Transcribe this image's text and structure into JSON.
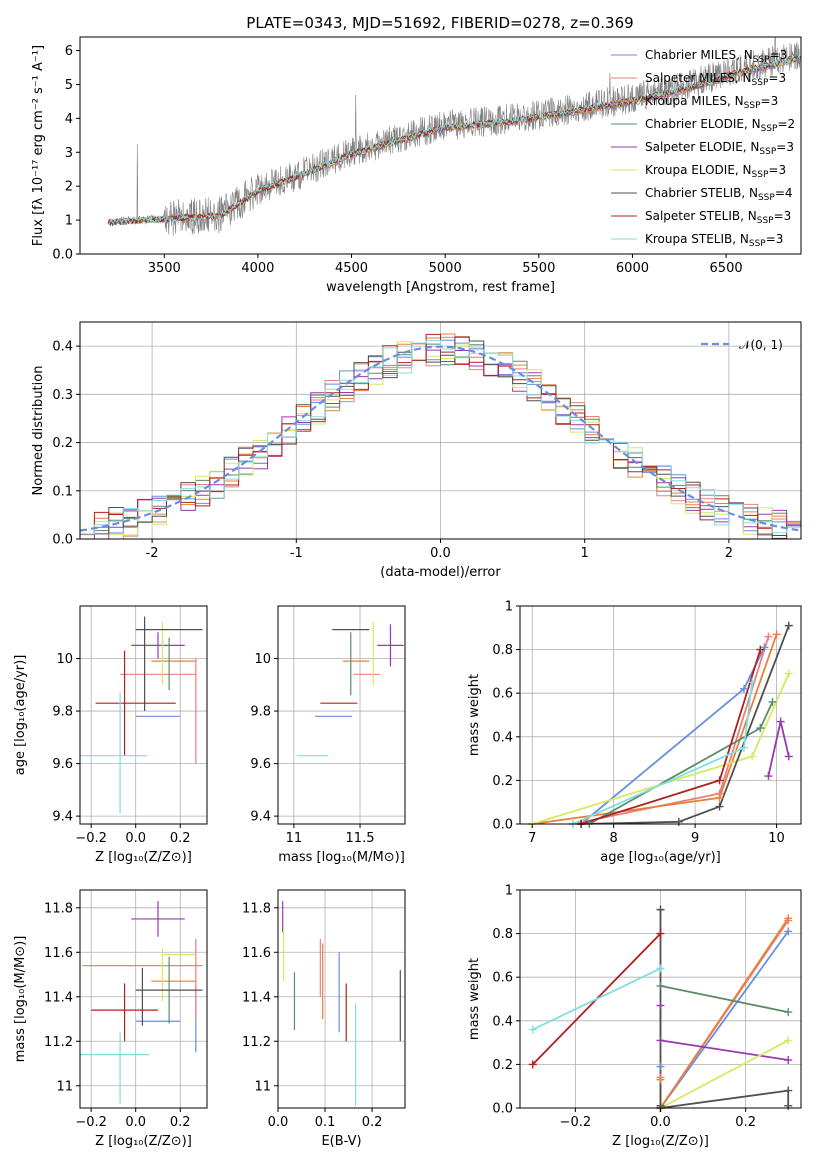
{
  "figure": {
    "title": "PLATE=0343, MJD=51692, FIBERID=0278, z=0.369"
  },
  "models": [
    {
      "name": "Chabrier MILES",
      "nssp": "3",
      "color": "#6a8de0"
    },
    {
      "name": "Salpeter MILES",
      "nssp": "3",
      "color": "#e8807e"
    },
    {
      "name": "Kroupa MILES",
      "nssp": "3",
      "color": "#e8803a"
    },
    {
      "name": "Chabrier ELODIE",
      "nssp": "2",
      "color": "#5a8c6a"
    },
    {
      "name": "Salpeter ELODIE",
      "nssp": "3",
      "color": "#9a38b0"
    },
    {
      "name": "Kroupa ELODIE",
      "nssp": "3",
      "color": "#d8e860"
    },
    {
      "name": "Chabrier STELIB",
      "nssp": "4",
      "color": "#505050"
    },
    {
      "name": "Salpeter STELIB",
      "nssp": "3",
      "color": "#b02020"
    },
    {
      "name": "Kroupa STELIB",
      "nssp": "3",
      "color": "#80dede"
    }
  ],
  "chart_data": [
    {
      "type": "line",
      "id": "spectrum",
      "title": "PLATE=0343, MJD=51692, FIBERID=0278, z=0.369",
      "xlabel": "wavelength [Angstrom, rest frame]",
      "ylabel": "Flux [fλ 10⁻¹⁷ erg cm⁻² s⁻¹ A⁻¹]",
      "xlim": [
        3050,
        6900
      ],
      "ylim": [
        0,
        6.4
      ],
      "xticks": [
        3500,
        4000,
        4500,
        5000,
        5500,
        6000,
        6500
      ],
      "yticks": [
        0,
        1,
        2,
        3,
        4,
        5,
        6
      ],
      "legend_position": "top-right",
      "data_color": "#7f7f7f",
      "continuum": [
        [
          3200,
          0.95
        ],
        [
          3500,
          1.05
        ],
        [
          3800,
          1.15
        ],
        [
          4000,
          1.9
        ],
        [
          4200,
          2.3
        ],
        [
          4500,
          3.0
        ],
        [
          4800,
          3.5
        ],
        [
          5000,
          3.8
        ],
        [
          5300,
          3.95
        ],
        [
          5600,
          4.2
        ],
        [
          6000,
          4.6
        ],
        [
          6300,
          5.0
        ],
        [
          6600,
          5.5
        ],
        [
          6900,
          5.9
        ]
      ],
      "model_start": [
        3200,
        3200,
        3530,
        3200,
        3200,
        3200,
        3200,
        3200,
        3200
      ]
    },
    {
      "type": "step",
      "id": "residuals",
      "xlabel": "(data-model)/error",
      "ylabel": "Normed distribution",
      "xlim": [
        -2.5,
        2.5
      ],
      "ylim": [
        0,
        0.45
      ],
      "xticks": [
        -2,
        -1,
        0,
        1,
        2
      ],
      "yticks": [
        0.0,
        0.1,
        0.2,
        0.3,
        0.4
      ],
      "grid": true,
      "legend": "𝒩(0, 1)",
      "legend_position": "top-right",
      "bin_width": 0.1,
      "gaussian": {
        "mean": 0,
        "sigma": 1,
        "color": "#6a8de0"
      }
    },
    {
      "type": "errorbar",
      "id": "age-vs-Z",
      "xlabel": "Z [log₁₀(Z/Z⊙)]",
      "ylabel": "age  [log₁₀(age/yr)]",
      "xlim": [
        -0.25,
        0.32
      ],
      "ylim": [
        9.37,
        10.2
      ],
      "xticks": [
        -0.2,
        0.0,
        0.2
      ],
      "yticks": [
        9.4,
        9.6,
        9.8,
        10.0
      ],
      "grid": true,
      "points": [
        {
          "x": 0.1,
          "y": 9.78,
          "xerr": 0.1,
          "yerr": 0.0,
          "c": 0
        },
        {
          "x": 0.1,
          "y": 9.94,
          "xerr": 0.17,
          "yerr": 0.0,
          "c": 1
        },
        {
          "x": 0.27,
          "y": 9.8,
          "xerr": 0.0,
          "yerr": 0.2,
          "c": 1
        },
        {
          "x": 0.17,
          "y": 9.99,
          "xerr": 0.1,
          "yerr": 0.0,
          "c": 2
        },
        {
          "x": 0.15,
          "y": 9.98,
          "xerr": 0.0,
          "yerr": 0.1,
          "c": 3
        },
        {
          "x": 0.1,
          "y": 10.05,
          "xerr": 0.12,
          "yerr": 0.05,
          "c": 4
        },
        {
          "x": 0.12,
          "y": 10.02,
          "xerr": 0.0,
          "yerr": 0.12,
          "c": 5
        },
        {
          "x": 0.15,
          "y": 10.11,
          "xerr": 0.15,
          "yerr": 0.0,
          "c": 6
        },
        {
          "x": 0.04,
          "y": 9.98,
          "xerr": 0.0,
          "yerr": 0.18,
          "c": 6
        },
        {
          "x": 0.0,
          "y": 9.83,
          "xerr": 0.18,
          "yerr": 0.0,
          "c": 7
        },
        {
          "x": -0.05,
          "y": 9.83,
          "xerr": 0.0,
          "yerr": 0.2,
          "c": 7
        },
        {
          "x": -0.1,
          "y": 9.63,
          "xerr": 0.15,
          "yerr": 0.0,
          "c": 8
        },
        {
          "x": -0.07,
          "y": 9.64,
          "xerr": 0.0,
          "yerr": 0.23,
          "c": 8
        }
      ]
    },
    {
      "type": "errorbar",
      "id": "age-vs-mass",
      "xlabel": "mass [log₁₀(M/M⊙)]",
      "ylabel": "",
      "xlim": [
        10.88,
        11.84
      ],
      "ylim": [
        9.37,
        10.2
      ],
      "xticks": [
        11.0,
        11.5
      ],
      "yticks": [
        9.4,
        9.6,
        9.8,
        10.0
      ],
      "grid": true,
      "points": [
        {
          "x": 11.3,
          "y": 9.78,
          "xerr": 0.14,
          "yerr": 0.0,
          "c": 0
        },
        {
          "x": 11.55,
          "y": 9.94,
          "xerr": 0.1,
          "yerr": 0.0,
          "c": 1
        },
        {
          "x": 11.47,
          "y": 9.99,
          "xerr": 0.1,
          "yerr": 0.0,
          "c": 2
        },
        {
          "x": 11.43,
          "y": 9.98,
          "xerr": 0.0,
          "yerr": 0.12,
          "c": 3
        },
        {
          "x": 11.73,
          "y": 10.05,
          "xerr": 0.1,
          "yerr": 0.08,
          "c": 4
        },
        {
          "x": 11.6,
          "y": 10.02,
          "xerr": 0.0,
          "yerr": 0.12,
          "c": 5
        },
        {
          "x": 11.43,
          "y": 10.11,
          "xerr": 0.14,
          "yerr": 0.0,
          "c": 6
        },
        {
          "x": 11.34,
          "y": 9.83,
          "xerr": 0.14,
          "yerr": 0.0,
          "c": 7
        },
        {
          "x": 11.14,
          "y": 9.63,
          "xerr": 0.12,
          "yerr": 0.0,
          "c": 8
        }
      ]
    },
    {
      "type": "line",
      "id": "weight-vs-age",
      "xlabel": "age  [log₁₀(age/yr)]",
      "ylabel": "mass weight",
      "xlim": [
        6.85,
        10.3
      ],
      "ylim": [
        0,
        1.0
      ],
      "xticks": [
        7,
        8,
        9,
        10
      ],
      "yticks": [
        0.0,
        0.2,
        0.4,
        0.6,
        0.8,
        1.0
      ],
      "grid": true,
      "series": [
        {
          "c": 0,
          "points": [
            [
              7.6,
              0.0
            ],
            [
              9.6,
              0.62
            ],
            [
              9.85,
              0.81
            ]
          ]
        },
        {
          "c": 1,
          "points": [
            [
              7.5,
              0.0
            ],
            [
              9.3,
              0.14
            ],
            [
              9.9,
              0.86
            ]
          ]
        },
        {
          "c": 2,
          "points": [
            [
              7.0,
              0.0
            ],
            [
              9.3,
              0.12
            ],
            [
              10.0,
              0.87
            ]
          ]
        },
        {
          "c": 3,
          "points": [
            [
              7.7,
              0.0
            ],
            [
              9.8,
              0.44
            ],
            [
              9.95,
              0.56
            ]
          ]
        },
        {
          "c": 4,
          "points": [
            [
              9.9,
              0.22
            ],
            [
              10.05,
              0.47
            ],
            [
              10.15,
              0.31
            ]
          ]
        },
        {
          "c": 5,
          "points": [
            [
              7.0,
              0.0
            ],
            [
              9.7,
              0.31
            ],
            [
              10.15,
              0.69
            ]
          ]
        },
        {
          "c": 6,
          "points": [
            [
              7.6,
              0.0
            ],
            [
              8.8,
              0.01
            ],
            [
              9.3,
              0.08
            ],
            [
              10.15,
              0.91
            ]
          ]
        },
        {
          "c": 7,
          "points": [
            [
              7.6,
              0.0
            ],
            [
              9.3,
              0.2
            ],
            [
              9.8,
              0.8
            ]
          ]
        },
        {
          "c": 8,
          "points": [
            [
              7.5,
              0.0
            ],
            [
              9.6,
              0.35
            ],
            [
              9.7,
              0.65
            ]
          ]
        }
      ]
    },
    {
      "type": "errorbar",
      "id": "mass-vs-Z",
      "xlabel": "Z [log₁₀(Z/Z⊙)]",
      "ylabel": "mass [log₁₀(M/M⊙)]",
      "xlim": [
        -0.25,
        0.32
      ],
      "ylim": [
        10.9,
        11.88
      ],
      "xticks": [
        -0.2,
        0.0,
        0.2
      ],
      "yticks": [
        11.0,
        11.2,
        11.4,
        11.6,
        11.8
      ],
      "grid": true,
      "points": [
        {
          "x": 0.1,
          "y": 11.29,
          "xerr": 0.1,
          "yerr": 0.0,
          "c": 0
        },
        {
          "x": 0.27,
          "y": 11.3,
          "xerr": 0.0,
          "yerr": 0.15,
          "c": 0
        },
        {
          "x": 0.03,
          "y": 11.54,
          "xerr": 0.27,
          "yerr": 0.0,
          "c": 1
        },
        {
          "x": 0.27,
          "y": 11.48,
          "xerr": 0.0,
          "yerr": 0.18,
          "c": 1
        },
        {
          "x": 0.17,
          "y": 11.47,
          "xerr": 0.1,
          "yerr": 0.0,
          "c": 2
        },
        {
          "x": 0.15,
          "y": 11.43,
          "xerr": 0.0,
          "yerr": 0.15,
          "c": 3
        },
        {
          "x": 0.1,
          "y": 11.75,
          "xerr": 0.12,
          "yerr": 0.08,
          "c": 4
        },
        {
          "x": 0.2,
          "y": 11.59,
          "xerr": 0.07,
          "yerr": 0.0,
          "c": 5
        },
        {
          "x": 0.12,
          "y": 11.5,
          "xerr": 0.0,
          "yerr": 0.12,
          "c": 5
        },
        {
          "x": 0.15,
          "y": 11.43,
          "xerr": 0.15,
          "yerr": 0.0,
          "c": 6
        },
        {
          "x": 0.03,
          "y": 11.4,
          "xerr": 0.0,
          "yerr": 0.13,
          "c": 6
        },
        {
          "x": -0.05,
          "y": 11.34,
          "xerr": 0.15,
          "yerr": 0.0,
          "c": 7
        },
        {
          "x": -0.05,
          "y": 11.33,
          "xerr": 0.0,
          "yerr": 0.13,
          "c": 7
        },
        {
          "x": -0.1,
          "y": 11.14,
          "xerr": 0.16,
          "yerr": 0.0,
          "c": 8
        },
        {
          "x": -0.07,
          "y": 11.08,
          "xerr": 0.0,
          "yerr": 0.16,
          "c": 8
        }
      ]
    },
    {
      "type": "errorbar",
      "id": "mass-vs-EBV",
      "xlabel": "E(B-V)",
      "ylabel": "",
      "xlim": [
        0,
        0.27
      ],
      "ylim": [
        10.9,
        11.88
      ],
      "xticks": [
        0.0,
        0.1,
        0.2
      ],
      "yticks": [
        11.0,
        11.2,
        11.4,
        11.6,
        11.8
      ],
      "grid": true,
      "points": [
        {
          "x": 0.13,
          "y": 11.42,
          "xerr": 0.0,
          "yerr": 0.18,
          "c": 0
        },
        {
          "x": 0.09,
          "y": 11.53,
          "xerr": 0.0,
          "yerr": 0.13,
          "c": 1
        },
        {
          "x": 0.095,
          "y": 11.47,
          "xerr": 0.0,
          "yerr": 0.17,
          "c": 2
        },
        {
          "x": 0.035,
          "y": 11.38,
          "xerr": 0.0,
          "yerr": 0.13,
          "c": 3
        },
        {
          "x": 0.01,
          "y": 11.76,
          "xerr": 0.0,
          "yerr": 0.07,
          "c": 4
        },
        {
          "x": 0.012,
          "y": 11.59,
          "xerr": 0.0,
          "yerr": 0.12,
          "c": 5
        },
        {
          "x": 0.26,
          "y": 11.36,
          "xerr": 0.0,
          "yerr": 0.16,
          "c": 6
        },
        {
          "x": 0.145,
          "y": 11.33,
          "xerr": 0.0,
          "yerr": 0.13,
          "c": 7
        },
        {
          "x": 0.165,
          "y": 11.14,
          "xerr": 0.0,
          "yerr": 0.23,
          "c": 8
        }
      ]
    },
    {
      "type": "line",
      "id": "weight-vs-Z",
      "xlabel": "Z [log₁₀(Z/Z⊙)]",
      "ylabel": "mass weight",
      "xlim": [
        -0.33,
        0.33
      ],
      "ylim": [
        0,
        1.0
      ],
      "xticks": [
        -0.2,
        0.0,
        0.2
      ],
      "yticks": [
        0.0,
        0.2,
        0.4,
        0.6,
        0.8,
        1.0
      ],
      "grid": true,
      "series": [
        {
          "c": 0,
          "points": [
            [
              0.0,
              0.19
            ],
            [
              0.0,
              0.0
            ],
            [
              0.3,
              0.81
            ]
          ]
        },
        {
          "c": 1,
          "points": [
            [
              0.0,
              0.14
            ],
            [
              0.0,
              0.0
            ],
            [
              0.3,
              0.86
            ]
          ]
        },
        {
          "c": 2,
          "points": [
            [
              0.0,
              0.13
            ],
            [
              0.0,
              0.0
            ],
            [
              0.3,
              0.87
            ]
          ]
        },
        {
          "c": 3,
          "points": [
            [
              0.0,
              0.56
            ],
            [
              0.3,
              0.44
            ]
          ]
        },
        {
          "c": 4,
          "points": [
            [
              0.0,
              0.47
            ],
            [
              0.0,
              0.31
            ],
            [
              0.3,
              0.22
            ]
          ]
        },
        {
          "c": 5,
          "points": [
            [
              0.0,
              0.0
            ],
            [
              0.3,
              0.31
            ]
          ]
        },
        {
          "c": 6,
          "points": [
            [
              0.0,
              0.91
            ],
            [
              0.0,
              0.01
            ],
            [
              0.0,
              0.0
            ],
            [
              0.3,
              0.08
            ],
            [
              0.3,
              0.01
            ]
          ]
        },
        {
          "c": 7,
          "points": [
            [
              -0.3,
              0.2
            ],
            [
              0.0,
              0.8
            ]
          ]
        },
        {
          "c": 8,
          "points": [
            [
              -0.3,
              0.36
            ],
            [
              0.0,
              0.64
            ]
          ]
        }
      ]
    }
  ]
}
